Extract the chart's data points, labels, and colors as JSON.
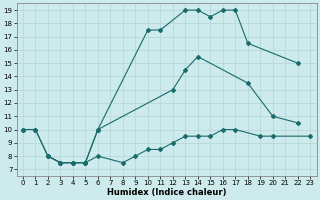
{
  "xlabel": "Humidex (Indice chaleur)",
  "bg_color": "#cdeaec",
  "grid_color": "#b8d8da",
  "line_color": "#1a6b6b",
  "xlim": [
    -0.5,
    23.5
  ],
  "ylim": [
    6.5,
    19.5
  ],
  "xticks": [
    0,
    1,
    2,
    3,
    4,
    5,
    6,
    7,
    8,
    9,
    10,
    11,
    12,
    13,
    14,
    15,
    16,
    17,
    18,
    19,
    20,
    21,
    22,
    23
  ],
  "yticks": [
    7,
    8,
    9,
    10,
    11,
    12,
    13,
    14,
    15,
    16,
    17,
    18,
    19
  ],
  "s1x": [
    0,
    1,
    2,
    3,
    4,
    5,
    6,
    10,
    11,
    13,
    14,
    15,
    16,
    17,
    18,
    22
  ],
  "s1y": [
    10,
    10,
    8,
    7.5,
    7.5,
    7.5,
    10,
    17.5,
    17.5,
    19,
    19,
    18.5,
    19,
    19,
    16.5,
    15
  ],
  "s2x": [
    0,
    1,
    2,
    3,
    4,
    5,
    6,
    12,
    13,
    14,
    18,
    20,
    22
  ],
  "s2y": [
    10,
    10,
    8,
    7.5,
    7.5,
    7.5,
    10,
    13,
    14.5,
    15.5,
    13.5,
    11,
    10.5
  ],
  "s3x": [
    2,
    3,
    4,
    5,
    6,
    8,
    9,
    10,
    11,
    12,
    13,
    14,
    15,
    16,
    17,
    19,
    20,
    23
  ],
  "s3y": [
    8,
    7.5,
    7.5,
    7.5,
    8,
    7.5,
    8,
    8.5,
    8.5,
    9,
    9.5,
    9.5,
    9.5,
    10,
    10,
    9.5,
    9.5,
    9.5
  ]
}
